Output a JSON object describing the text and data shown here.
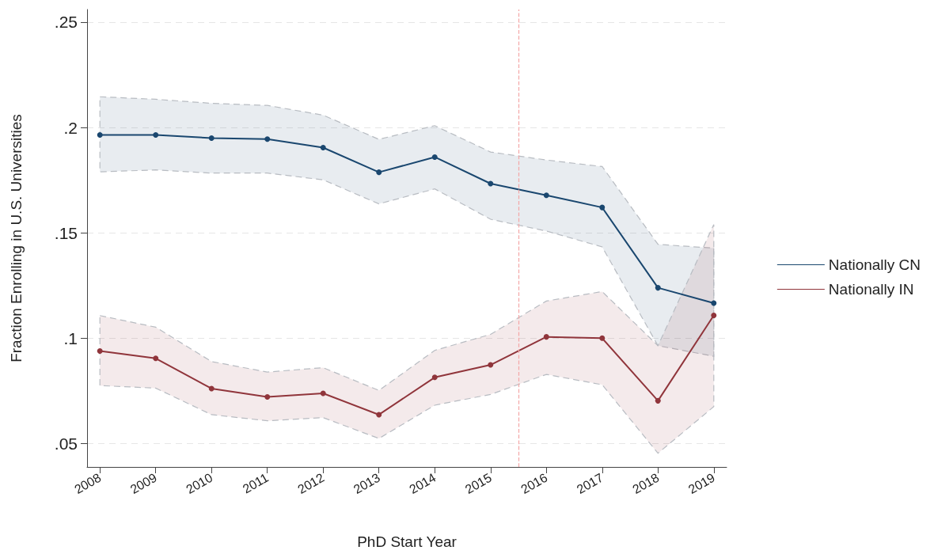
{
  "chart_data": {
    "type": "line",
    "xlabel": "PhD Start Year",
    "ylabel": "Fraction Enrolling in U.S. Universities",
    "x": [
      2008,
      2009,
      2010,
      2011,
      2012,
      2013,
      2014,
      2015,
      2016,
      2017,
      2018,
      2019
    ],
    "series": [
      {
        "name": "Nationally CN",
        "color": "#1a476f",
        "values": [
          0.1965,
          0.1965,
          0.195,
          0.1945,
          0.1905,
          0.1788,
          0.186,
          0.1734,
          0.1679,
          0.1621,
          0.124,
          0.1167
        ],
        "lower": [
          0.179,
          0.1799,
          0.1784,
          0.1784,
          0.1752,
          0.1638,
          0.1709,
          0.1565,
          0.1509,
          0.1434,
          0.0965,
          0.0915
        ],
        "upper": [
          0.2146,
          0.2134,
          0.2115,
          0.2105,
          0.2059,
          0.1944,
          0.2009,
          0.1884,
          0.1846,
          0.1815,
          0.1446,
          0.1428
        ]
      },
      {
        "name": "Nationally IN",
        "color": "#90353b",
        "values": [
          0.094,
          0.0905,
          0.0762,
          0.0722,
          0.0739,
          0.0638,
          0.0815,
          0.0874,
          0.1007,
          0.1001,
          0.0704,
          0.1109
        ],
        "lower": [
          0.0776,
          0.0764,
          0.0638,
          0.0609,
          0.0624,
          0.0525,
          0.0683,
          0.0734,
          0.0829,
          0.078,
          0.0455,
          0.0676
        ],
        "upper": [
          0.1108,
          0.1053,
          0.089,
          0.084,
          0.0861,
          0.0753,
          0.0943,
          0.1019,
          0.1177,
          0.1222,
          0.0965,
          0.154
        ]
      }
    ],
    "xlim": [
      2007.77,
      2019.23
    ],
    "xticks": [
      2008,
      2009,
      2010,
      2011,
      2012,
      2013,
      2014,
      2015,
      2016,
      2017,
      2018,
      2019
    ],
    "ylim": [
      0.039,
      0.256
    ],
    "yticks": [
      {
        "value": 0.05,
        "label": ".05"
      },
      {
        "value": 0.1,
        "label": ".1"
      },
      {
        "value": 0.15,
        "label": ".15"
      },
      {
        "value": 0.2,
        "label": ".2"
      },
      {
        "value": 0.25,
        "label": ".25"
      }
    ],
    "ref_lines": [
      {
        "axis": "x",
        "value": 2015.5,
        "label": null,
        "color": "#f4a6a6",
        "line_style": "dashed"
      }
    ],
    "grid": "y",
    "legend": "right",
    "marker": "circle",
    "line_style": "solid"
  }
}
